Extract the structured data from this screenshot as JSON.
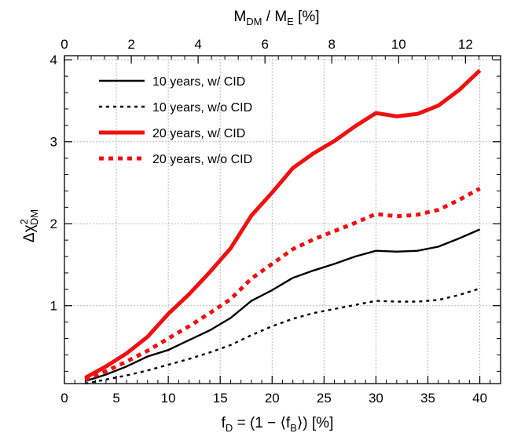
{
  "chart_data": {
    "type": "line",
    "xlabel": {
      "main": "f",
      "sub": "D",
      "mid": " = (1 − ⟨f",
      "sub2": "B",
      "end": "⟩) [%]"
    },
    "ylabel": {
      "main": "Δχ",
      "sup": "2",
      "sub": "DM"
    },
    "x2label": {
      "a": "M",
      "a_sub": "DM",
      "b": " / M",
      "b_sub": "E",
      "c": " [%]"
    },
    "xlim": [
      0,
      42
    ],
    "ylim": [
      0.05,
      4.05
    ],
    "x_ticks": [
      0,
      5,
      10,
      15,
      20,
      25,
      30,
      35,
      40
    ],
    "x_tick_labels": [
      "0",
      "5",
      "10",
      "15",
      "20",
      "25",
      "30",
      "35",
      "40"
    ],
    "y_ticks": [
      1,
      2,
      3,
      4
    ],
    "y_tick_labels": [
      "1",
      "2",
      "3",
      "4"
    ],
    "x2_ticks": [
      0,
      2,
      4,
      6,
      8,
      10,
      12
    ],
    "x2_tick_labels": [
      "0",
      "2",
      "4",
      "6",
      "8",
      "10",
      "12"
    ],
    "x2_scale_max": 13.05,
    "grid": true,
    "legend_position": "top-left",
    "series": [
      {
        "name": "10 years, w/ CID",
        "color": "#000000",
        "style": "solid",
        "width": "thin",
        "x": [
          2,
          4,
          6,
          8,
          10,
          12,
          14,
          16,
          18,
          20,
          22,
          24,
          26,
          28,
          30,
          32,
          34,
          36,
          38,
          40
        ],
        "y": [
          0.08,
          0.16,
          0.26,
          0.38,
          0.46,
          0.58,
          0.7,
          0.85,
          1.06,
          1.19,
          1.34,
          1.43,
          1.51,
          1.6,
          1.67,
          1.66,
          1.67,
          1.72,
          1.82,
          1.93
        ]
      },
      {
        "name": "10 years, w/o CID",
        "color": "#000000",
        "style": "dotted",
        "width": "thin",
        "x": [
          2,
          4,
          6,
          8,
          10,
          12,
          14,
          16,
          18,
          20,
          22,
          24,
          26,
          28,
          30,
          32,
          34,
          36,
          38,
          40
        ],
        "y": [
          0.05,
          0.1,
          0.15,
          0.21,
          0.28,
          0.35,
          0.43,
          0.52,
          0.64,
          0.75,
          0.84,
          0.91,
          0.96,
          1.01,
          1.06,
          1.05,
          1.05,
          1.07,
          1.13,
          1.21
        ]
      },
      {
        "name": "20 years, w/ CID",
        "color": "#ee1111",
        "style": "solid",
        "width": "thick",
        "x": [
          2,
          4,
          6,
          8,
          10,
          12,
          14,
          16,
          18,
          20,
          22,
          24,
          26,
          28,
          30,
          32,
          34,
          36,
          38,
          40
        ],
        "y": [
          0.12,
          0.26,
          0.42,
          0.62,
          0.9,
          1.14,
          1.41,
          1.7,
          2.1,
          2.38,
          2.68,
          2.86,
          3.01,
          3.19,
          3.35,
          3.31,
          3.34,
          3.44,
          3.63,
          3.87
        ]
      },
      {
        "name": "20 years, w/o CID",
        "color": "#ee1111",
        "style": "dotted",
        "width": "thick",
        "x": [
          2,
          4,
          6,
          8,
          10,
          12,
          14,
          16,
          18,
          20,
          22,
          24,
          26,
          28,
          30,
          32,
          34,
          36,
          38,
          40
        ],
        "y": [
          0.1,
          0.2,
          0.32,
          0.45,
          0.6,
          0.75,
          0.91,
          1.08,
          1.33,
          1.51,
          1.69,
          1.81,
          1.91,
          2.01,
          2.12,
          2.09,
          2.11,
          2.17,
          2.29,
          2.43
        ]
      }
    ]
  }
}
